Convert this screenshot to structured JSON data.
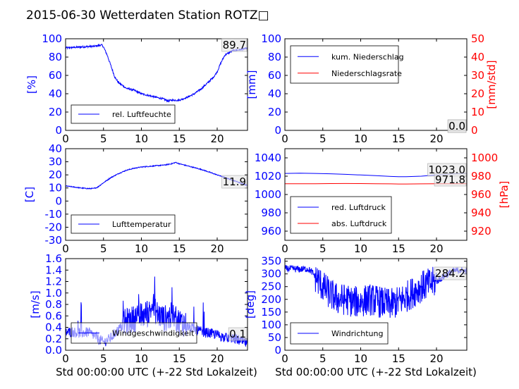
{
  "figure": {
    "title": "2015-06-30 Wetterdaten Station ROTZ□",
    "xlabel": "Std 00:00:00 UTC (+-22 Std Lokalzeit)"
  },
  "chart_data": [
    {
      "id": "humidity",
      "type": "line",
      "ylabel": "[%]",
      "xlim": [
        0,
        24
      ],
      "ylim": [
        0,
        100
      ],
      "xticks": [
        0,
        5,
        10,
        15,
        20
      ],
      "yticks": [
        0,
        20,
        40,
        60,
        80,
        100
      ],
      "legend_loc": "lower-left",
      "last_value": "89.7",
      "series": [
        {
          "name": "rel. Luftfeuchte",
          "color": "#0000ff",
          "noise": 2,
          "x": [
            0,
            1,
            2,
            3,
            4,
            4.5,
            4.8,
            5,
            5.5,
            6,
            6.5,
            7,
            8,
            9,
            10,
            11,
            12,
            13,
            13.5,
            14,
            15,
            16,
            17,
            18,
            19,
            19.5,
            20,
            20.5,
            21,
            22,
            23,
            24
          ],
          "y": [
            90,
            90.5,
            91,
            91.5,
            92,
            93,
            93,
            91,
            82,
            70,
            58,
            52,
            46,
            44,
            40,
            38,
            36,
            34,
            32,
            33,
            33,
            36,
            40,
            46,
            54,
            58,
            64,
            74,
            82,
            87,
            88,
            89.7
          ]
        }
      ]
    },
    {
      "id": "precip",
      "type": "line",
      "ylabel": "[mm]",
      "ylabel_right": "[mm/std]",
      "xlim": [
        0,
        24
      ],
      "ylim": [
        0,
        100
      ],
      "ylim_right": [
        0,
        50
      ],
      "xticks": [
        0,
        5,
        10,
        15,
        20
      ],
      "yticks": [
        0,
        20,
        40,
        60,
        80,
        100
      ],
      "yticks_right": [
        0,
        10,
        20,
        30,
        40,
        50
      ],
      "legend_loc": "upper-left",
      "last_value": "0.0",
      "last_value_2": "0.0",
      "series": [
        {
          "name": "kum. Niederschlag",
          "color": "#0000ff",
          "axis": "left",
          "x": [
            0,
            24
          ],
          "y": [
            0,
            0
          ]
        },
        {
          "name": "Niederschlagsrate",
          "color": "#ff0000",
          "axis": "right",
          "x": [
            0,
            24
          ],
          "y": [
            0,
            0
          ]
        }
      ]
    },
    {
      "id": "temperature",
      "type": "line",
      "ylabel": "[C]",
      "xlim": [
        0,
        24
      ],
      "ylim": [
        -30,
        40
      ],
      "xticks": [
        0,
        5,
        10,
        15,
        20
      ],
      "yticks": [
        -30,
        -20,
        -10,
        0,
        10,
        20,
        30,
        40
      ],
      "legend_loc": "lower-left",
      "last_value": "11.9",
      "series": [
        {
          "name": "Lufttemperatur",
          "color": "#0000ff",
          "noise": 0.7,
          "x": [
            0,
            1,
            2,
            3,
            3.7,
            4.2,
            5,
            6,
            7,
            8,
            9,
            10,
            11,
            12,
            13,
            14,
            14.5,
            15,
            16,
            17,
            18,
            19,
            20,
            21,
            22,
            23,
            24
          ],
          "y": [
            11.5,
            10.8,
            10,
            9.5,
            9.6,
            10.5,
            14,
            18,
            21,
            23.5,
            25,
            26,
            26.5,
            27,
            27.5,
            28.5,
            29.5,
            28.5,
            27,
            25.5,
            24,
            22,
            20,
            18,
            16,
            14,
            11.9
          ]
        }
      ]
    },
    {
      "id": "pressure",
      "type": "line",
      "ylabel_right": "[hPa]",
      "xlim": [
        0,
        24
      ],
      "ylim": [
        950,
        1050
      ],
      "ylim_right": [
        910,
        1010
      ],
      "xticks": [
        0,
        5,
        10,
        15,
        20
      ],
      "yticks": [
        960,
        980,
        1000,
        1020,
        1040
      ],
      "yticks_right": [
        920,
        940,
        960,
        980,
        1000
      ],
      "legend_loc": "lower-left",
      "last_value": "1023.0",
      "last_value_2": "971.8",
      "series": [
        {
          "name": "red. Luftdruck",
          "color": "#0000ff",
          "axis": "left",
          "x": [
            0,
            2,
            4,
            6,
            8,
            10,
            12,
            14,
            15,
            16,
            18,
            20,
            22,
            24
          ],
          "y": [
            1023.0,
            1023.2,
            1023.0,
            1022.6,
            1022.0,
            1021.3,
            1020.6,
            1019.7,
            1019.4,
            1019.4,
            1020.0,
            1021.3,
            1022.4,
            1023.0
          ]
        },
        {
          "name": "abs. Luftdruck",
          "color": "#ff0000",
          "axis": "right",
          "x": [
            0,
            2,
            4,
            6,
            8,
            10,
            12,
            14,
            15,
            16,
            18,
            20,
            22,
            24
          ],
          "y": [
            971.7,
            971.7,
            971.8,
            971.9,
            972.0,
            971.9,
            971.8,
            971.6,
            971.5,
            971.5,
            971.6,
            971.7,
            971.8,
            971.8
          ]
        }
      ]
    },
    {
      "id": "windspeed",
      "type": "line",
      "ylabel": "[m/s]",
      "xlim": [
        0,
        24
      ],
      "ylim": [
        0,
        1.6
      ],
      "xticks": [
        0,
        5,
        10,
        15,
        20
      ],
      "yticks": [
        0.0,
        0.2,
        0.4,
        0.6,
        0.8,
        1.0,
        1.2,
        1.4,
        1.6
      ],
      "legend_loc": "lower-left",
      "last_value": "0.1",
      "series": [
        {
          "name": "Windgeschwindigkeit",
          "color": "#0000ff",
          "noise": 0.3,
          "x": [
            0,
            1,
            2,
            3,
            4,
            5,
            6,
            7,
            8,
            9,
            10,
            11,
            11.5,
            12,
            13,
            14,
            15,
            16,
            17,
            18,
            19,
            20,
            21,
            22,
            23,
            24
          ],
          "y": [
            0.3,
            0.3,
            0.28,
            0.3,
            0.22,
            0.12,
            0.2,
            0.35,
            0.45,
            0.5,
            0.55,
            0.6,
            0.75,
            0.6,
            0.5,
            0.55,
            0.45,
            0.4,
            0.35,
            0.3,
            0.28,
            0.25,
            0.2,
            0.2,
            0.15,
            0.1
          ]
        }
      ]
    },
    {
      "id": "winddir",
      "type": "line",
      "ylabel": "[deg]",
      "xlim": [
        0,
        24
      ],
      "ylim": [
        0,
        360
      ],
      "xticks": [
        0,
        5,
        10,
        15,
        20
      ],
      "yticks": [
        0,
        50,
        100,
        150,
        200,
        250,
        300,
        350
      ],
      "legend_loc": "lower-left",
      "last_value": "284.2",
      "series": [
        {
          "name": "Windrichtung",
          "color": "#0000ff",
          "noise": 45,
          "x": [
            0,
            1,
            2,
            3,
            3.5,
            4,
            5,
            6,
            7,
            8,
            9,
            10,
            11,
            12,
            13,
            14,
            15,
            16,
            17,
            18,
            19,
            20,
            21,
            22,
            23,
            24
          ],
          "y": [
            320,
            320,
            318,
            320,
            310,
            290,
            250,
            220,
            200,
            200,
            190,
            190,
            200,
            195,
            185,
            180,
            190,
            210,
            230,
            250,
            260,
            270,
            290,
            310,
            315,
            310
          ]
        }
      ]
    }
  ]
}
